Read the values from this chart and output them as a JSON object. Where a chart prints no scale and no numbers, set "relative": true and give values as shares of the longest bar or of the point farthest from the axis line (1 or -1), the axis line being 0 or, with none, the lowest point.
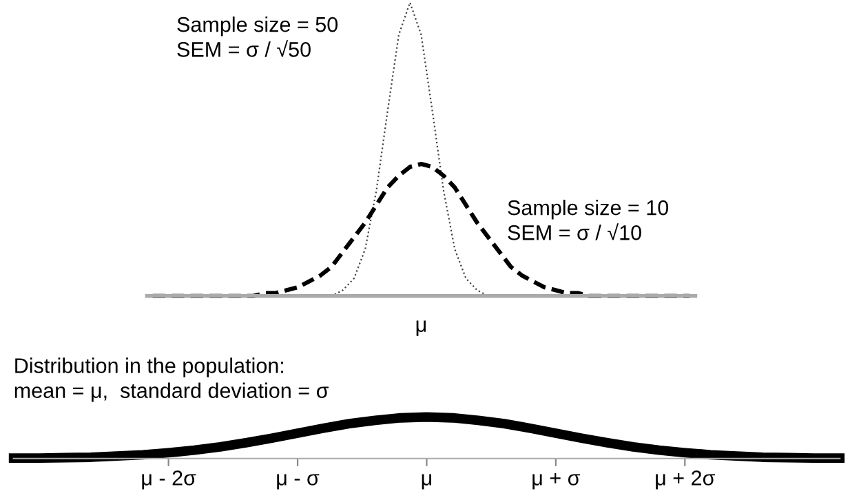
{
  "chart_data": [
    {
      "type": "line",
      "relative": true,
      "categories": [
        null,
        null,
        null,
        null,
        null,
        null,
        null,
        null,
        null,
        null,
        null,
        null,
        null,
        null,
        null,
        null,
        null,
        null,
        null,
        null,
        null,
        null,
        null,
        null,
        null,
        null,
        null,
        null,
        null,
        null,
        null,
        null,
        null,
        null,
        null,
        null,
        null,
        null,
        null,
        null,
        null,
        null,
        null,
        null,
        null,
        null,
        null,
        null,
        null
      ],
      "annotations": [
        "μ"
      ],
      "series": [
        {
          "name": "Sample size = 50\nSEM = σ / √50",
          "color": "#444444",
          "line_style": "dotted",
          "values": [
            0,
            0,
            0,
            0,
            0,
            0,
            0,
            0,
            0,
            0,
            0,
            0,
            0,
            0,
            0,
            0,
            0,
            0.02,
            0.06,
            0.16,
            0.36,
            0.63,
            0.89,
            1,
            0.89,
            0.63,
            0.36,
            0.16,
            0.06,
            0.02,
            0,
            0,
            0,
            0,
            0,
            0,
            0,
            0,
            0,
            0,
            0,
            0,
            0,
            0,
            0,
            0,
            0,
            0,
            0
          ]
        },
        {
          "name": "Sample size = 10\nSEM = σ / √10",
          "color": "#000000",
          "line_style": "dashed",
          "values": [
            0,
            0,
            0,
            0,
            0,
            0,
            0,
            0,
            0,
            0,
            0.01,
            0.01,
            0.02,
            0.03,
            0.05,
            0.07,
            0.1,
            0.15,
            0.2,
            0.25,
            0.31,
            0.37,
            0.41,
            0.44,
            0.45,
            0.44,
            0.41,
            0.37,
            0.31,
            0.25,
            0.2,
            0.15,
            0.1,
            0.07,
            0.05,
            0.03,
            0.02,
            0.01,
            0.01,
            0,
            0,
            0,
            0,
            0,
            0,
            0,
            0,
            0,
            0
          ]
        }
      ]
    },
    {
      "type": "line",
      "relative": true,
      "title": "Distribution in the population:\nmean = μ,  standard deviation = σ",
      "x": [
        -3.2,
        -3,
        -2.8,
        -2.6,
        -2.4,
        -2.2,
        -2,
        -1.8,
        -1.6,
        -1.4,
        -1.2,
        -1,
        -0.8,
        -0.6,
        -0.4,
        -0.2,
        0,
        0.2,
        0.4,
        0.6,
        0.8,
        1,
        1.2,
        1.4,
        1.6,
        1.8,
        2,
        2.2,
        2.4,
        2.6,
        2.8,
        3,
        3.2
      ],
      "xlim": [
        -3.2,
        3.2
      ],
      "xticks": [
        {
          "value": -2,
          "label": "μ - 2σ"
        },
        {
          "value": -1,
          "label": "μ - σ"
        },
        {
          "value": 0,
          "label": "μ"
        },
        {
          "value": 1,
          "label": "μ + σ"
        },
        {
          "value": 2,
          "label": "μ + 2σ"
        }
      ],
      "series": [
        {
          "color": "#000000",
          "line_style": "solid",
          "values": [
            0.01,
            0.01,
            0.02,
            0.03,
            0.06,
            0.09,
            0.14,
            0.2,
            0.28,
            0.38,
            0.49,
            0.61,
            0.73,
            0.84,
            0.92,
            0.98,
            1,
            0.98,
            0.92,
            0.84,
            0.73,
            0.61,
            0.49,
            0.38,
            0.28,
            0.2,
            0.14,
            0.09,
            0.06,
            0.03,
            0.02,
            0.01,
            0.01
          ]
        }
      ]
    }
  ]
}
